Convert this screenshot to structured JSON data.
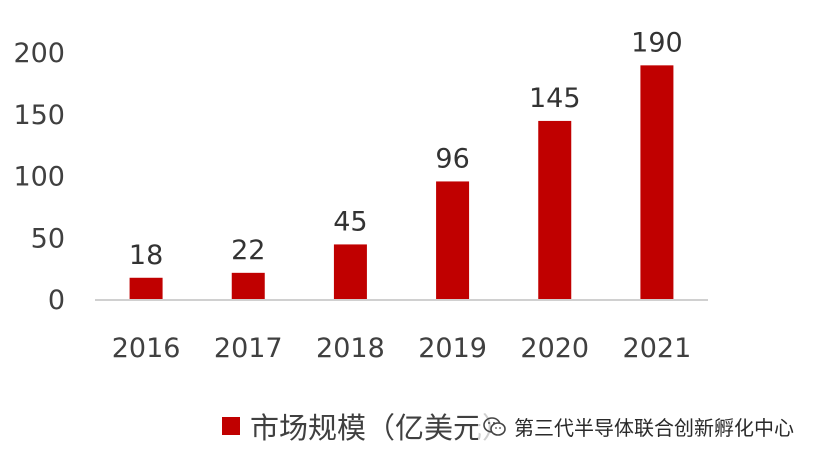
{
  "chart_data": {
    "type": "bar",
    "categories": [
      "2016",
      "2017",
      "2018",
      "2019",
      "2020",
      "2021"
    ],
    "values": [
      18,
      22,
      45,
      96,
      145,
      190
    ],
    "data_labels": [
      "18",
      "22",
      "45",
      "96",
      "145",
      "190"
    ],
    "title": "",
    "xlabel": "",
    "ylabel": "",
    "ylim": [
      0,
      200
    ],
    "yticks": [
      "0",
      "50",
      "100",
      "150",
      "200"
    ],
    "grid": false,
    "legend": {
      "placement": "bottom",
      "entries": [
        {
          "name": "市场规模（亿美元）",
          "color": "#c00000"
        }
      ]
    },
    "colors": {
      "bar": "#c00000",
      "axis": "#d0d0d0"
    }
  },
  "watermark": {
    "icon": "wechat-icon",
    "text": "第三代半导体联合创新孵化中心"
  }
}
